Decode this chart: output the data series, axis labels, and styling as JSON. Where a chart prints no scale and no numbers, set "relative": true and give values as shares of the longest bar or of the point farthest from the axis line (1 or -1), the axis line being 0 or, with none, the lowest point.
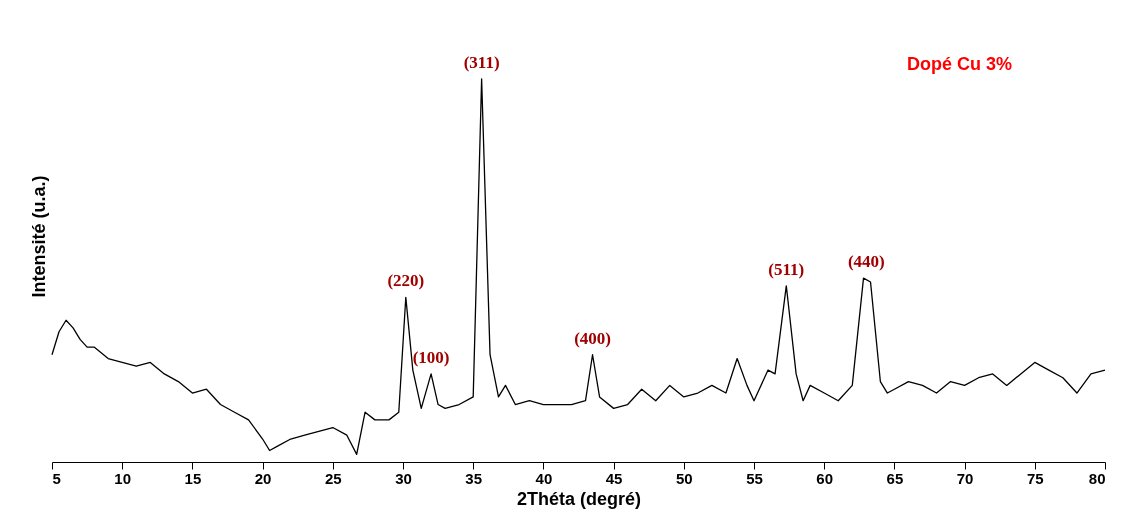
{
  "chart_data": {
    "type": "line",
    "relative": true,
    "xlabel": "2Théta (degré)",
    "ylabel": "Intensité (u.a.)",
    "xlim": [
      5,
      80
    ],
    "xticks": [
      5,
      10,
      15,
      20,
      25,
      30,
      35,
      40,
      45,
      50,
      55,
      60,
      65,
      70,
      75,
      80
    ],
    "grid": false,
    "marker": "none",
    "line_style": "solid",
    "series": [
      {
        "color": "#000000",
        "x": [
          5,
          5.5,
          6,
          6.5,
          7,
          7.5,
          8,
          9,
          10,
          11,
          12,
          13,
          14,
          15,
          16,
          17,
          18,
          19,
          20,
          20.5,
          21,
          22,
          23,
          24,
          25,
          26,
          26.7,
          27.3,
          28,
          29,
          29.7,
          30.2,
          30.7,
          31.3,
          32,
          32.5,
          33,
          34,
          35,
          35.6,
          36.2,
          36.8,
          37.3,
          38,
          39,
          40,
          41,
          42,
          43,
          43.5,
          44,
          45,
          46,
          47,
          48,
          49,
          50,
          51,
          52,
          53,
          53.8,
          54.5,
          55,
          56,
          56.5,
          57.3,
          58,
          58.5,
          59,
          60,
          61,
          62,
          62.8,
          63.3,
          64,
          64.5,
          65,
          66,
          67,
          68,
          69,
          70,
          71,
          72,
          73,
          74,
          75,
          76,
          77,
          78,
          79,
          80
        ],
        "values": [
          0.28,
          0.34,
          0.37,
          0.35,
          0.32,
          0.3,
          0.3,
          0.27,
          0.26,
          0.25,
          0.26,
          0.23,
          0.21,
          0.18,
          0.19,
          0.15,
          0.13,
          0.11,
          0.06,
          0.03,
          0.04,
          0.06,
          0.07,
          0.08,
          0.09,
          0.07,
          0.02,
          0.13,
          0.11,
          0.11,
          0.13,
          0.43,
          0.24,
          0.14,
          0.23,
          0.15,
          0.14,
          0.15,
          0.17,
          1,
          0.28,
          0.17,
          0.2,
          0.15,
          0.16,
          0.15,
          0.15,
          0.15,
          0.16,
          0.28,
          0.17,
          0.14,
          0.15,
          0.19,
          0.16,
          0.2,
          0.17,
          0.18,
          0.2,
          0.18,
          0.27,
          0.2,
          0.16,
          0.24,
          0.23,
          0.46,
          0.23,
          0.16,
          0.2,
          0.18,
          0.16,
          0.2,
          0.48,
          0.47,
          0.21,
          0.18,
          0.19,
          0.21,
          0.2,
          0.18,
          0.21,
          0.2,
          0.22,
          0.23,
          0.2,
          0.23,
          0.26,
          0.24,
          0.22,
          0.18,
          0.23,
          0.24
        ]
      }
    ],
    "annotations": [
      {
        "text": "(311)",
        "x": 35.6,
        "y": 1
      },
      {
        "text": "(220)",
        "x": 30.2,
        "y": 0.43
      },
      {
        "text": "(100)",
        "x": 32,
        "y": 0.23
      },
      {
        "text": "(400)",
        "x": 43.5,
        "y": 0.28
      },
      {
        "text": "(511)",
        "x": 57.3,
        "y": 0.46
      },
      {
        "text": "(440)",
        "x": 63,
        "y": 0.48
      },
      "Dopé Cu 3%"
    ]
  }
}
